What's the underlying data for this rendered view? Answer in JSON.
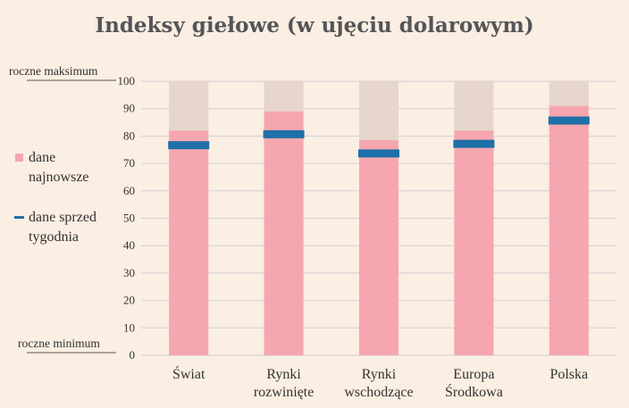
{
  "chart_data": {
    "type": "bar",
    "title": "Indeksy giełowe (w ujęciu dolarowym)",
    "categories": [
      [
        "Świat"
      ],
      [
        "Rynki",
        "rozwinięte"
      ],
      [
        "Rynki",
        "wschodzące"
      ],
      [
        "Europa",
        "Środkowa"
      ],
      [
        "Polska"
      ]
    ],
    "series": [
      {
        "name": "dane najnowsze",
        "values": [
          82,
          89,
          78.5,
          82,
          91
        ],
        "color": "#f5a6ae"
      },
      {
        "name": "dane sprzed tygodnia",
        "values": [
          76.5,
          80.5,
          73.5,
          77,
          85.5
        ],
        "color": "#1f6fa8"
      }
    ],
    "range_max": 100,
    "range_color": "#e6d6cb",
    "ylim": [
      0,
      100
    ],
    "yticks": [
      0,
      10,
      20,
      30,
      40,
      50,
      60,
      70,
      80,
      90,
      100
    ],
    "grid": true,
    "grid_color": "#d3cfd6",
    "y_max_label": "roczne maksimum",
    "y_min_label": "roczne minimum",
    "legend": {
      "placement": "left",
      "items": [
        {
          "label_lines": [
            "dane",
            "najnowsze"
          ],
          "marker": "square",
          "color": "#f5a6ae"
        },
        {
          "label_lines": [
            "dane sprzed",
            "tygodnia"
          ],
          "marker": "dash",
          "color": "#1f6fa8"
        }
      ]
    }
  }
}
